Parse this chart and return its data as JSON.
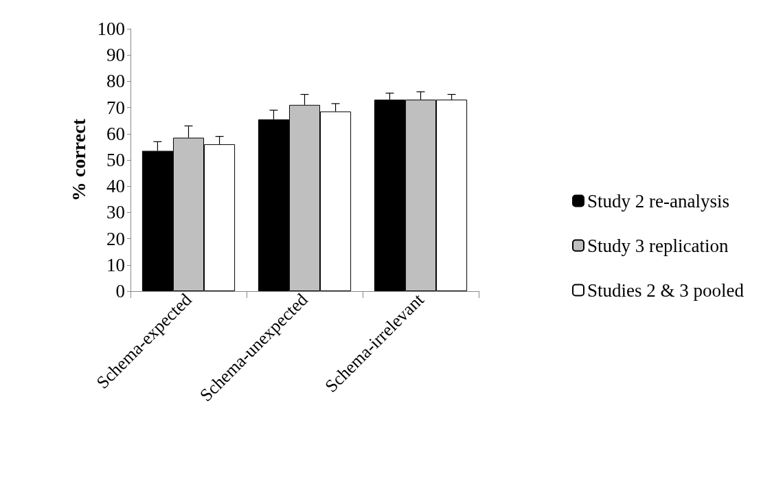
{
  "chart_data": {
    "type": "bar",
    "ylabel": "% correct",
    "categories": [
      "Schema-expected",
      "Schema-unexpected",
      "Schema-irrelevant"
    ],
    "series": [
      {
        "name": "Study 2 re-analysis",
        "color": "#000000",
        "values": [
          53.5,
          65.5,
          73
        ],
        "errors": [
          [
            53.5,
            57
          ],
          [
            65.5,
            69
          ],
          [
            73,
            75.5
          ]
        ]
      },
      {
        "name": "Study 3 replication",
        "color": "#bfbfbf",
        "values": [
          58.5,
          71,
          73
        ],
        "errors": [
          [
            58.5,
            63
          ],
          [
            71,
            75
          ],
          [
            73,
            76
          ]
        ]
      },
      {
        "name": "Studies 2 & 3 pooled",
        "color": "#ffffff",
        "values": [
          56,
          68.5,
          73
        ],
        "errors": [
          [
            56,
            59
          ],
          [
            68.5,
            71.5
          ],
          [
            73,
            75
          ]
        ]
      }
    ],
    "ylim": [
      0,
      100
    ],
    "yticks": [
      0,
      10,
      20,
      30,
      40,
      50,
      60,
      70,
      80,
      90,
      100
    ],
    "grid": false,
    "legend": "right"
  }
}
